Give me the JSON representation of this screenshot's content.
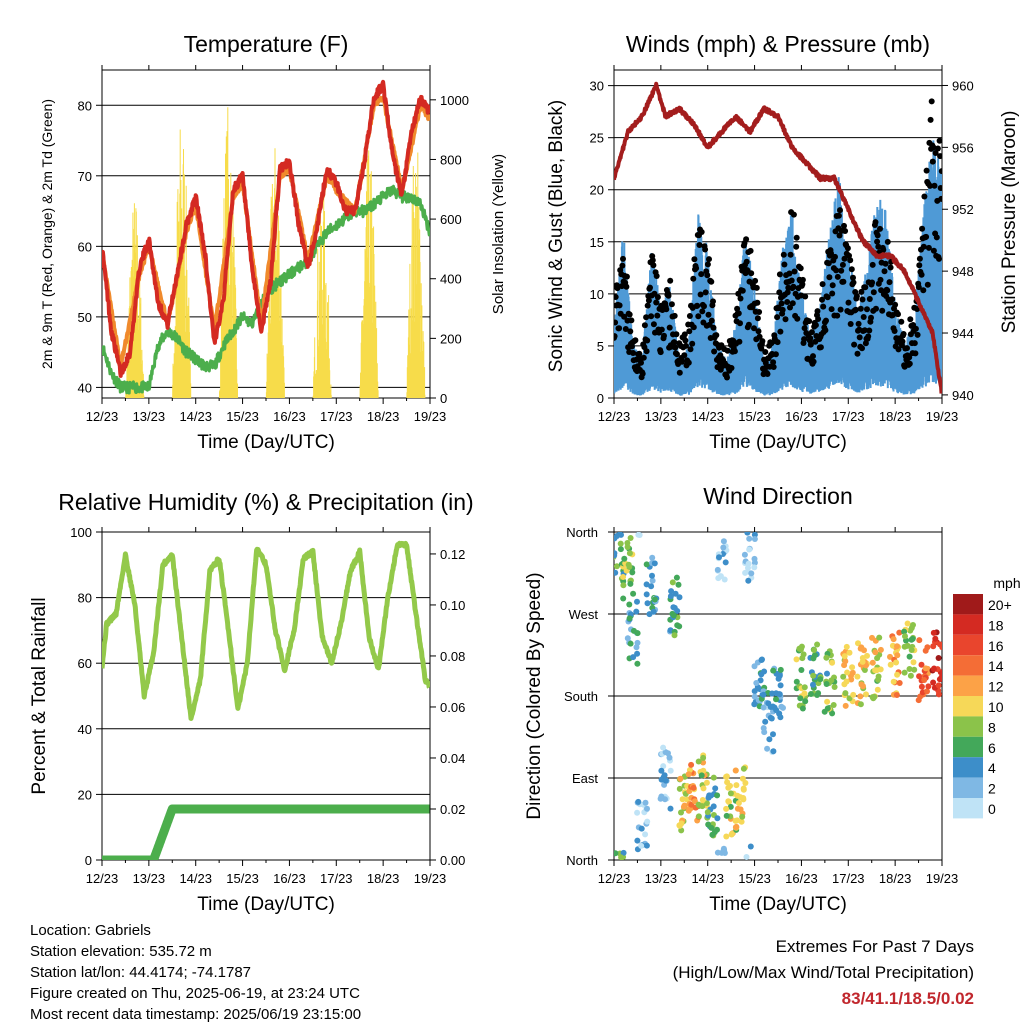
{
  "xaxis": {
    "ticks": [
      "12/23",
      "13/23",
      "14/23",
      "15/23",
      "16/23",
      "17/23",
      "18/23",
      "19/23"
    ],
    "label": "Time (Day/UTC)"
  },
  "panels": {
    "temperature": {
      "title": "Temperature (F)",
      "ylabel_left": "2m & 9m T (Red, Orange) & 2m Td (Green)",
      "ylabel_right": "Solar Insolation (Yellow)",
      "left_ticks": [
        "40",
        "50",
        "60",
        "70",
        "80"
      ],
      "right_ticks": [
        "0",
        "200",
        "400",
        "600",
        "800",
        "1000"
      ]
    },
    "winds": {
      "title": "Winds (mph) & Pressure (mb)",
      "ylabel_left": "Sonic Wind & Gust (Blue, Black)",
      "ylabel_right": "Station Pressure (Maroon)",
      "left_ticks": [
        "0",
        "5",
        "10",
        "15",
        "20",
        "25",
        "30"
      ],
      "right_ticks": [
        "940",
        "944",
        "948",
        "952",
        "956",
        "960"
      ]
    },
    "humidity": {
      "title": "Relative Humidity (%) & Precipitation (in)",
      "ylabel_left": "Percent & Total Rainfall",
      "left_ticks": [
        "0",
        "20",
        "40",
        "60",
        "80",
        "100"
      ],
      "right_ticks": [
        "0.00",
        "0.02",
        "0.04",
        "0.06",
        "0.08",
        "0.10",
        "0.12"
      ]
    },
    "direction": {
      "title": "Wind Direction",
      "ylabel_left": "Direction (Colored By Speed)",
      "left_ticks": [
        "North",
        "East",
        "South",
        "West",
        "North"
      ],
      "colorbar_title": "mph",
      "colorbar_labels": [
        "20+",
        "18",
        "16",
        "14",
        "12",
        "10",
        "8",
        "6",
        "4",
        "2",
        "0"
      ],
      "colorbar_colors": [
        "#a01a1a",
        "#d42a22",
        "#e9452d",
        "#f46d36",
        "#fca247",
        "#f6d858",
        "#8bc34a",
        "#43a85a",
        "#3d8ec9",
        "#7fb8e4",
        "#bfe3f6"
      ]
    }
  },
  "info": {
    "location": "Location: Gabriels",
    "elevation": "Station elevation: 535.72 m",
    "latlon": "Station lat/lon: 44.4174; -74.1787",
    "created": "Figure created on Thu, 2025-06-19, at 23:24 UTC",
    "timestamp": "Most recent data timestamp: 2025/06/19 23:15:00",
    "extremes_title": "Extremes For Past 7 Days",
    "extremes_subtitle": "(High/Low/Max Wind/Total Precipitation)",
    "extremes_value": "83/41.1/18.5/0.02"
  },
  "colors": {
    "temp2m": "#d42a22",
    "temp9m": "#f08a2c",
    "dewpoint": "#4cae4c",
    "solar": "#f7dc4a",
    "wind": "#4f9ad6",
    "gust": "#000000",
    "pressure": "#a31d1d",
    "rh": "#93c94a",
    "precip": "#4cae4c"
  },
  "chart_data": [
    {
      "type": "line",
      "x_unit": "day of June (UTC)",
      "x_range": [
        12,
        19
      ],
      "series": [
        {
          "name": "2m T",
          "axis": "left",
          "x": [
            12.0,
            12.2,
            12.4,
            12.6,
            12.8,
            13.0,
            13.2,
            13.4,
            13.6,
            13.8,
            14.0,
            14.2,
            14.4,
            14.6,
            14.8,
            15.0,
            15.2,
            15.4,
            15.6,
            15.8,
            16.0,
            16.2,
            16.4,
            16.6,
            16.8,
            17.0,
            17.2,
            17.4,
            17.6,
            17.8,
            18.0,
            18.2,
            18.4,
            18.6,
            18.8,
            19.0
          ],
          "y": [
            60,
            48,
            42,
            45,
            57,
            61,
            52,
            49,
            56,
            63,
            67,
            59,
            46,
            53,
            68,
            70,
            57,
            48,
            55,
            71,
            72,
            63,
            57,
            63,
            71,
            69,
            65,
            65,
            72,
            81,
            83,
            73,
            67,
            76,
            81,
            79
          ]
        },
        {
          "name": "9m T",
          "axis": "left",
          "x": [
            12.0,
            12.4,
            12.8,
            13.0,
            13.4,
            13.8,
            14.0,
            14.4,
            14.8,
            15.0,
            15.4,
            15.8,
            16.0,
            16.4,
            16.8,
            17.0,
            17.4,
            17.8,
            18.0,
            18.4,
            18.8,
            19.0
          ],
          "y": [
            59,
            43,
            56,
            60,
            49,
            62,
            66,
            48,
            67,
            69,
            49,
            70,
            71,
            58,
            70,
            68,
            65,
            80,
            81,
            68,
            80,
            78
          ]
        },
        {
          "name": "2m Td",
          "axis": "left",
          "x": [
            12.0,
            12.2,
            12.4,
            12.6,
            12.8,
            13.0,
            13.2,
            13.4,
            13.6,
            13.8,
            14.0,
            14.2,
            14.4,
            14.6,
            14.8,
            15.0,
            15.2,
            15.4,
            15.6,
            15.8,
            16.0,
            16.2,
            16.4,
            16.6,
            16.8,
            17.0,
            17.2,
            17.4,
            17.6,
            17.8,
            18.0,
            18.2,
            18.4,
            18.6,
            18.8,
            19.0
          ],
          "y": [
            46,
            42,
            40,
            40,
            40,
            40,
            46,
            48,
            47,
            45,
            44,
            43,
            43,
            46,
            48,
            50,
            49,
            52,
            54,
            55,
            56,
            57,
            58,
            60,
            62,
            63,
            64,
            65,
            65,
            66,
            67,
            68,
            67,
            67,
            66,
            62
          ]
        },
        {
          "name": "Solar Insolation",
          "axis": "right",
          "x": [
            12.5,
            12.7,
            12.9,
            13.5,
            13.7,
            13.9,
            14.5,
            14.7,
            14.9,
            15.5,
            15.7,
            15.9,
            16.5,
            16.7,
            16.9,
            17.5,
            17.7,
            17.9,
            18.5,
            18.7,
            18.9
          ],
          "y": [
            0,
            700,
            0,
            0,
            980,
            0,
            0,
            1010,
            0,
            0,
            880,
            0,
            0,
            720,
            0,
            0,
            850,
            0,
            0,
            900,
            0
          ]
        }
      ],
      "ylim_left": [
        38.5,
        85
      ],
      "ylim_right": [
        0,
        1100
      ]
    },
    {
      "type": "line",
      "x_unit": "day of June (UTC)",
      "x_range": [
        12,
        19
      ],
      "series": [
        {
          "name": "Station Pressure",
          "axis": "right",
          "x": [
            12.0,
            12.3,
            12.6,
            12.9,
            13.1,
            13.4,
            13.7,
            14.0,
            14.3,
            14.6,
            14.9,
            15.2,
            15.5,
            15.8,
            16.1,
            16.4,
            16.7,
            17.0,
            17.3,
            17.6,
            17.9,
            18.2,
            18.5,
            18.8,
            19.0
          ],
          "y": [
            954,
            957,
            958,
            960,
            958,
            958.5,
            957.5,
            956,
            957,
            958,
            957,
            958.5,
            958,
            956,
            955,
            954,
            954,
            952,
            950,
            949,
            949,
            948,
            946,
            944,
            940
          ]
        },
        {
          "name": "Sonic Wind",
          "axis": "left",
          "x": [
            12.0,
            12.2,
            12.4,
            12.6,
            12.8,
            13.0,
            13.2,
            13.4,
            13.6,
            13.8,
            14.0,
            14.2,
            14.4,
            14.6,
            14.8,
            15.0,
            15.2,
            15.4,
            15.6,
            15.8,
            16.0,
            16.2,
            16.4,
            16.6,
            16.8,
            17.0,
            17.2,
            17.4,
            17.6,
            17.8,
            18.0,
            18.2,
            18.4,
            18.6,
            18.8,
            19.0
          ],
          "y": [
            4,
            9,
            3,
            2,
            8,
            5,
            6,
            2,
            3,
            10,
            8,
            3,
            2,
            4,
            9,
            6,
            2,
            3,
            8,
            10,
            6,
            3,
            5,
            9,
            12,
            8,
            5,
            7,
            11,
            10,
            5,
            3,
            4,
            10,
            14,
            12
          ]
        },
        {
          "name": "Gust",
          "axis": "left",
          "x": [
            12.0,
            12.2,
            12.4,
            12.6,
            12.8,
            13.0,
            13.2,
            13.4,
            13.6,
            13.8,
            14.0,
            14.2,
            14.4,
            14.6,
            14.8,
            15.0,
            15.2,
            15.4,
            15.6,
            15.8,
            16.0,
            16.2,
            16.4,
            16.6,
            16.8,
            17.0,
            17.2,
            17.4,
            17.6,
            17.8,
            18.0,
            18.2,
            18.4,
            18.6,
            18.8,
            19.0
          ],
          "y": [
            9,
            15,
            6,
            4,
            14,
            9,
            11,
            5,
            7,
            17,
            14,
            6,
            4,
            8,
            16,
            12,
            4,
            6,
            14,
            18,
            12,
            6,
            9,
            15,
            18,
            14,
            9,
            12,
            17,
            18,
            9,
            6,
            8,
            17,
            29,
            22
          ]
        }
      ],
      "ylim_left": [
        0,
        31.5
      ],
      "ylim_right": [
        939.8,
        961
      ]
    },
    {
      "type": "line",
      "x_unit": "day of June (UTC)",
      "x_range": [
        12,
        19
      ],
      "series": [
        {
          "name": "Relative Humidity",
          "axis": "left",
          "x": [
            12.0,
            12.1,
            12.3,
            12.5,
            12.7,
            12.9,
            13.1,
            13.3,
            13.5,
            13.7,
            13.9,
            14.1,
            14.3,
            14.5,
            14.7,
            14.9,
            15.1,
            15.3,
            15.5,
            15.7,
            15.9,
            16.1,
            16.3,
            16.5,
            16.7,
            16.9,
            17.1,
            17.3,
            17.5,
            17.7,
            17.9,
            18.1,
            18.3,
            18.5,
            18.7,
            18.9,
            19.0
          ],
          "y": [
            59,
            72,
            75,
            93,
            78,
            50,
            63,
            90,
            93,
            68,
            43,
            55,
            88,
            92,
            70,
            46,
            60,
            95,
            90,
            70,
            58,
            70,
            92,
            94,
            68,
            60,
            72,
            88,
            94,
            68,
            58,
            80,
            96,
            96,
            75,
            55,
            53
          ]
        },
        {
          "name": "Total Rainfall",
          "axis": "right",
          "x": [
            12.0,
            13.1,
            13.3,
            13.5,
            13.7,
            15.0,
            17.0,
            19.0
          ],
          "y": [
            0,
            0,
            0.01,
            0.02,
            0.02,
            0.02,
            0.02,
            0.02
          ]
        }
      ],
      "ylim_left": [
        0,
        100
      ],
      "ylim_right": [
        0,
        0.1286
      ]
    },
    {
      "type": "scatter",
      "x_unit": "day of June (UTC)",
      "x_range": [
        12,
        19
      ],
      "y_unit": "direction (degrees: 0 North, 90 East, 180 South, 270 West, 360 North)",
      "color_by": "wind speed (mph)",
      "series": [
        {
          "name": "Wind Direction",
          "x": [
            12.1,
            12.3,
            12.4,
            12.6,
            12.8,
            13.1,
            13.3,
            13.5,
            13.7,
            13.9,
            14.1,
            14.3,
            14.5,
            14.7,
            14.9,
            15.1,
            15.3,
            15.5,
            16.0,
            16.3,
            16.6,
            17.0,
            17.3,
            17.6,
            18.0,
            18.3,
            18.6,
            18.9
          ],
          "y": [
            340,
            320,
            250,
            30,
            300,
            90,
            280,
            60,
            70,
            80,
            60,
            340,
            60,
            70,
            340,
            200,
            150,
            180,
            200,
            205,
            195,
            200,
            205,
            210,
            215,
            225,
            210,
            215
          ],
          "speed": [
            6,
            8,
            4,
            2,
            3,
            2,
            5,
            10,
            12,
            9,
            6,
            2,
            9,
            10,
            2,
            4,
            3,
            4,
            8,
            6,
            7,
            10,
            11,
            9,
            12,
            8,
            14,
            18
          ]
        }
      ],
      "ylim": [
        0,
        360
      ]
    }
  ]
}
